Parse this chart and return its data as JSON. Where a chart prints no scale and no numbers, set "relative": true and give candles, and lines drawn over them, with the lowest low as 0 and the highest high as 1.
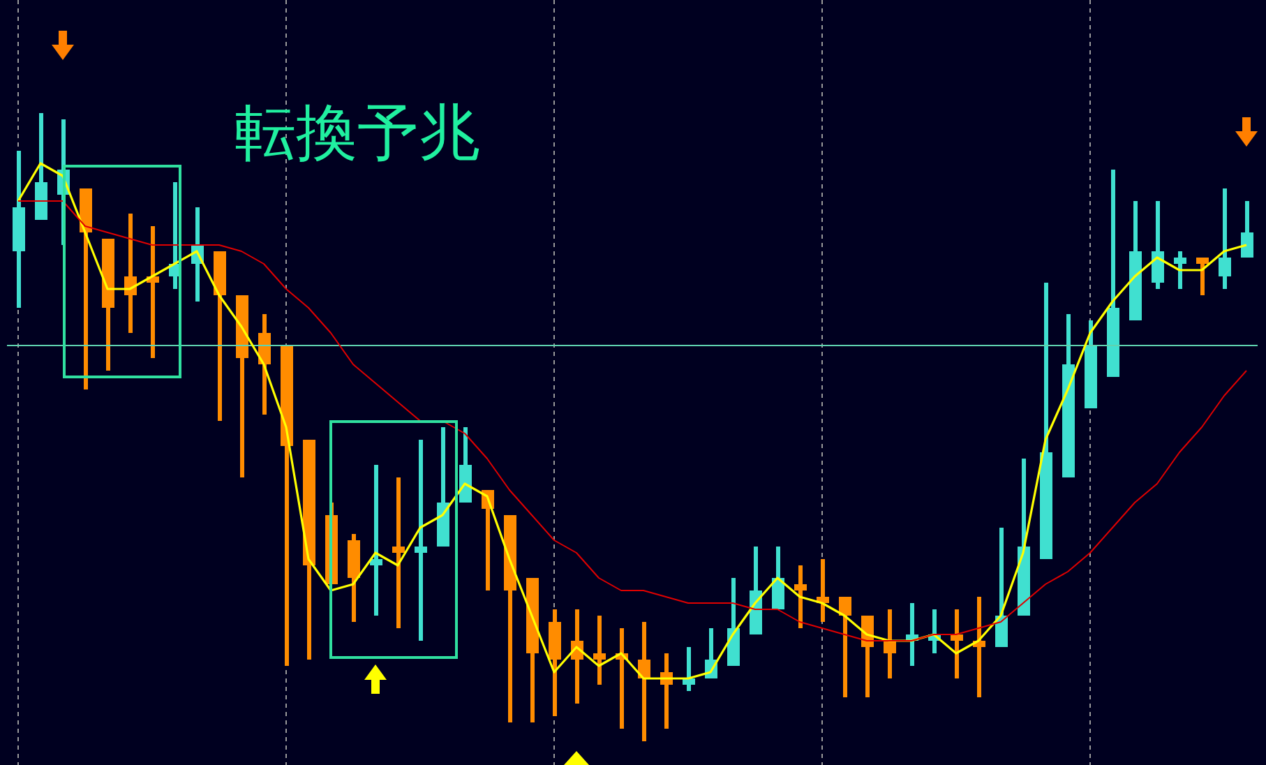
{
  "chart_data": {
    "type": "candlestick",
    "relative": true,
    "categories": [
      null,
      null,
      null,
      null,
      null,
      null,
      null,
      null,
      null,
      null,
      null,
      null,
      null,
      null,
      null,
      null,
      null,
      null,
      null,
      null,
      null,
      null,
      null,
      null,
      null,
      null,
      null,
      null,
      null,
      null,
      null,
      null,
      null,
      null,
      null,
      null,
      null,
      null,
      null,
      null,
      null,
      null,
      null,
      null,
      null,
      null,
      null,
      null,
      null,
      null,
      null,
      null,
      null,
      null,
      null,
      null
    ],
    "ohlc": [
      [
        0.78,
        0.94,
        0.69,
        0.85
      ],
      [
        0.83,
        1.0,
        0.83,
        0.89
      ],
      [
        0.87,
        0.99,
        0.79,
        0.91
      ],
      [
        0.88,
        0.88,
        0.56,
        0.81
      ],
      [
        0.8,
        0.8,
        0.59,
        0.69
      ],
      [
        0.74,
        0.84,
        0.65,
        0.71
      ],
      [
        0.74,
        0.82,
        0.61,
        0.73
      ],
      [
        0.74,
        0.89,
        0.72,
        0.76
      ],
      [
        0.76,
        0.85,
        0.7,
        0.79
      ],
      [
        0.78,
        0.78,
        0.51,
        0.71
      ],
      [
        0.71,
        0.71,
        0.42,
        0.61
      ],
      [
        0.65,
        0.68,
        0.52,
        0.6
      ],
      [
        0.63,
        0.63,
        0.12,
        0.47
      ],
      [
        0.48,
        0.48,
        0.13,
        0.28
      ],
      [
        0.36,
        0.38,
        0.25,
        0.25
      ],
      [
        0.32,
        0.33,
        0.19,
        0.26
      ],
      [
        0.28,
        0.44,
        0.2,
        0.29
      ],
      [
        0.31,
        0.42,
        0.18,
        0.3
      ],
      [
        0.3,
        0.48,
        0.16,
        0.31
      ],
      [
        0.31,
        0.5,
        0.31,
        0.38
      ],
      [
        0.38,
        0.5,
        0.38,
        0.44
      ],
      [
        0.4,
        0.4,
        0.24,
        0.37
      ],
      [
        0.36,
        0.36,
        0.03,
        0.24
      ],
      [
        0.26,
        0.26,
        0.03,
        0.14
      ],
      [
        0.19,
        0.21,
        0.04,
        0.13
      ],
      [
        0.16,
        0.21,
        0.06,
        0.13
      ],
      [
        0.14,
        0.2,
        0.09,
        0.13
      ],
      [
        0.14,
        0.18,
        0.02,
        0.13
      ],
      [
        0.13,
        0.19,
        0.0,
        0.1
      ],
      [
        0.11,
        0.14,
        0.02,
        0.09
      ],
      [
        0.09,
        0.15,
        0.08,
        0.1
      ],
      [
        0.1,
        0.18,
        0.1,
        0.13
      ],
      [
        0.12,
        0.26,
        0.12,
        0.18
      ],
      [
        0.17,
        0.31,
        0.17,
        0.24
      ],
      [
        0.21,
        0.31,
        0.21,
        0.26
      ],
      [
        0.25,
        0.28,
        0.18,
        0.24
      ],
      [
        0.23,
        0.29,
        0.19,
        0.22
      ],
      [
        0.23,
        0.23,
        0.07,
        0.2
      ],
      [
        0.2,
        0.2,
        0.07,
        0.15
      ],
      [
        0.16,
        0.21,
        0.1,
        0.14
      ],
      [
        0.16,
        0.22,
        0.12,
        0.17
      ],
      [
        0.16,
        0.21,
        0.14,
        0.17
      ],
      [
        0.17,
        0.21,
        0.1,
        0.16
      ],
      [
        0.16,
        0.23,
        0.07,
        0.15
      ],
      [
        0.15,
        0.34,
        0.15,
        0.2
      ],
      [
        0.2,
        0.45,
        0.2,
        0.31
      ],
      [
        0.29,
        0.73,
        0.29,
        0.46
      ],
      [
        0.42,
        0.68,
        0.42,
        0.6
      ],
      [
        0.53,
        0.67,
        0.53,
        0.63
      ],
      [
        0.58,
        0.91,
        0.58,
        0.69
      ],
      [
        0.67,
        0.86,
        0.67,
        0.78
      ],
      [
        0.73,
        0.86,
        0.72,
        0.78
      ],
      [
        0.76,
        0.78,
        0.72,
        0.77
      ],
      [
        0.77,
        0.77,
        0.71,
        0.76
      ],
      [
        0.74,
        0.88,
        0.72,
        0.77
      ],
      [
        0.77,
        0.86,
        0.77,
        0.81
      ]
    ],
    "colors": [
      "#40e0d0",
      "#40e0d0",
      "#40e0d0",
      "#ff8c00",
      "#ff8c00",
      "#ff8c00",
      "#ff8c00",
      "#40e0d0",
      "#40e0d0",
      "#ff8c00",
      "#ff8c00",
      "#ff8c00",
      "#ff8c00",
      "#ff8c00",
      "#ff8c00",
      "#ff8c00",
      "#40e0d0",
      "#ff8c00",
      "#40e0d0",
      "#40e0d0",
      "#40e0d0",
      "#ff8c00",
      "#ff8c00",
      "#ff8c00",
      "#ff8c00",
      "#ff8c00",
      "#ff8c00",
      "#ff8c00",
      "#ff8c00",
      "#ff8c00",
      "#40e0d0",
      "#40e0d0",
      "#40e0d0",
      "#40e0d0",
      "#40e0d0",
      "#ff8c00",
      "#ff8c00",
      "#ff8c00",
      "#ff8c00",
      "#ff8c00",
      "#40e0d0",
      "#40e0d0",
      "#ff8c00",
      "#ff8c00",
      "#40e0d0",
      "#40e0d0",
      "#40e0d0",
      "#40e0d0",
      "#40e0d0",
      "#40e0d0",
      "#40e0d0",
      "#40e0d0",
      "#40e0d0",
      "#ff8c00",
      "#40e0d0",
      "#40e0d0"
    ],
    "series": [
      {
        "type": "line",
        "color": "#ffff00",
        "values": [
          0.86,
          0.92,
          0.9,
          0.81,
          0.72,
          0.72,
          0.74,
          0.76,
          0.78,
          0.71,
          0.66,
          0.6,
          0.5,
          0.29,
          0.24,
          0.25,
          0.3,
          0.28,
          0.34,
          0.36,
          0.41,
          0.39,
          0.29,
          0.2,
          0.11,
          0.15,
          0.12,
          0.14,
          0.1,
          0.1,
          0.1,
          0.11,
          0.17,
          0.22,
          0.26,
          0.23,
          0.22,
          0.2,
          0.17,
          0.16,
          0.16,
          0.17,
          0.14,
          0.16,
          0.2,
          0.3,
          0.48,
          0.56,
          0.65,
          0.7,
          0.74,
          0.77,
          0.75,
          0.75,
          0.78,
          0.79
        ]
      },
      {
        "type": "line",
        "color": "#e00000",
        "values": [
          0.86,
          0.86,
          0.86,
          0.82,
          0.81,
          0.8,
          0.79,
          0.79,
          0.79,
          0.79,
          0.78,
          0.76,
          0.72,
          0.69,
          0.65,
          0.6,
          0.57,
          0.54,
          0.51,
          0.51,
          0.49,
          0.45,
          0.4,
          0.36,
          0.32,
          0.3,
          0.26,
          0.24,
          0.24,
          0.23,
          0.22,
          0.22,
          0.22,
          0.21,
          0.21,
          0.19,
          0.18,
          0.17,
          0.16,
          0.16,
          0.16,
          0.17,
          0.17,
          0.18,
          0.19,
          0.22,
          0.25,
          0.27,
          0.3,
          0.34,
          0.38,
          0.41,
          0.46,
          0.5,
          0.55,
          0.59
        ]
      }
    ],
    "grid": "x",
    "ref_lines": [
      {
        "axis": "y",
        "value": 0.63,
        "color": "#5fd3b0"
      }
    ],
    "annotations": [
      "転換予兆"
    ]
  }
}
